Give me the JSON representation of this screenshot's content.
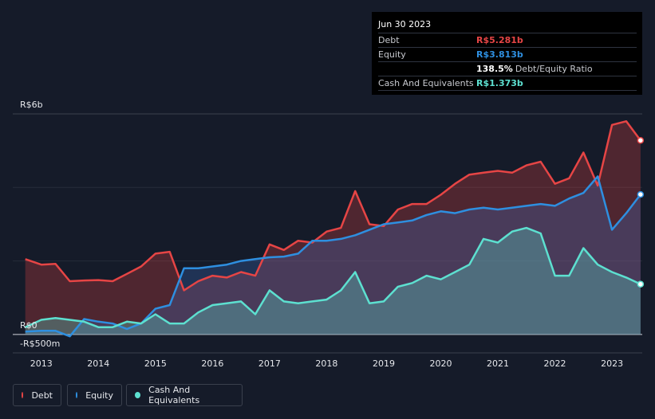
{
  "tooltip": {
    "date": "Jun 30 2023",
    "rows": [
      {
        "label": "Debt",
        "value": "R$5.281b",
        "color": "#e64545",
        "note": ""
      },
      {
        "label": "Equity",
        "value": "R$3.813b",
        "color": "#2e8fe0",
        "note": ""
      },
      {
        "label": "",
        "value": "138.5%",
        "color": "#ffffff",
        "note": "Debt/Equity Ratio"
      },
      {
        "label": "Cash And Equivalents",
        "value": "R$1.373b",
        "color": "#5de0d0",
        "note": ""
      }
    ]
  },
  "axis": {
    "top_label": "R$6b",
    "zero_label": "R$0",
    "bottom_label": "-R$500m"
  },
  "legend": [
    {
      "label": "Debt",
      "color": "#e64545"
    },
    {
      "label": "Equity",
      "color": "#2e8fe0"
    },
    {
      "label": "Cash And Equivalents",
      "color": "#5de0d0"
    }
  ],
  "chart_data": {
    "type": "area",
    "title": "",
    "xlabel": "",
    "ylabel": "",
    "ylim": [
      -0.5,
      6.0
    ],
    "unit": "R$ billions",
    "x_ticks": [
      "2013",
      "2014",
      "2015",
      "2016",
      "2017",
      "2018",
      "2019",
      "2020",
      "2021",
      "2022",
      "2023"
    ],
    "x": [
      2012.72,
      2013.0,
      2013.25,
      2013.5,
      2013.75,
      2014.0,
      2014.25,
      2014.5,
      2014.75,
      2015.0,
      2015.25,
      2015.5,
      2015.75,
      2016.0,
      2016.25,
      2016.5,
      2016.75,
      2017.0,
      2017.25,
      2017.5,
      2017.75,
      2018.0,
      2018.25,
      2018.5,
      2018.75,
      2019.0,
      2019.25,
      2019.5,
      2019.75,
      2020.0,
      2020.25,
      2020.5,
      2020.75,
      2021.0,
      2021.25,
      2021.5,
      2021.75,
      2022.0,
      2022.25,
      2022.5,
      2022.75,
      2023.0,
      2023.25,
      2023.5
    ],
    "series": [
      {
        "name": "Debt",
        "color": "#e64545",
        "values": [
          2.05,
          1.9,
          1.92,
          1.45,
          1.47,
          1.48,
          1.45,
          1.65,
          1.85,
          2.2,
          2.25,
          1.2,
          1.45,
          1.6,
          1.55,
          1.7,
          1.6,
          2.45,
          2.3,
          2.55,
          2.5,
          2.8,
          2.9,
          3.9,
          3.0,
          2.95,
          3.4,
          3.55,
          3.55,
          3.8,
          4.1,
          4.35,
          4.4,
          4.45,
          4.4,
          4.6,
          4.7,
          4.1,
          4.25,
          4.95,
          4.05,
          5.7,
          5.8,
          5.28
        ]
      },
      {
        "name": "Equity",
        "color": "#2e8fe0",
        "values": [
          0.08,
          0.1,
          0.1,
          -0.05,
          0.42,
          0.35,
          0.3,
          0.15,
          0.3,
          0.7,
          0.8,
          1.8,
          1.8,
          1.85,
          1.9,
          2.0,
          2.05,
          2.1,
          2.12,
          2.2,
          2.55,
          2.55,
          2.6,
          2.7,
          2.85,
          3.0,
          3.05,
          3.1,
          3.25,
          3.35,
          3.3,
          3.4,
          3.45,
          3.4,
          3.45,
          3.5,
          3.55,
          3.5,
          3.7,
          3.85,
          4.3,
          2.85,
          3.3,
          3.81
        ]
      },
      {
        "name": "Cash And Equivalents",
        "color": "#5de0d0",
        "values": [
          0.2,
          0.4,
          0.45,
          0.4,
          0.35,
          0.2,
          0.2,
          0.35,
          0.3,
          0.55,
          0.3,
          0.3,
          0.6,
          0.8,
          0.85,
          0.9,
          0.55,
          1.2,
          0.9,
          0.85,
          0.9,
          0.95,
          1.2,
          1.7,
          0.85,
          0.9,
          1.3,
          1.4,
          1.6,
          1.5,
          1.7,
          1.9,
          2.6,
          2.5,
          2.8,
          2.9,
          2.75,
          1.6,
          1.6,
          2.35,
          1.9,
          1.7,
          1.55,
          1.37
        ]
      }
    ]
  }
}
